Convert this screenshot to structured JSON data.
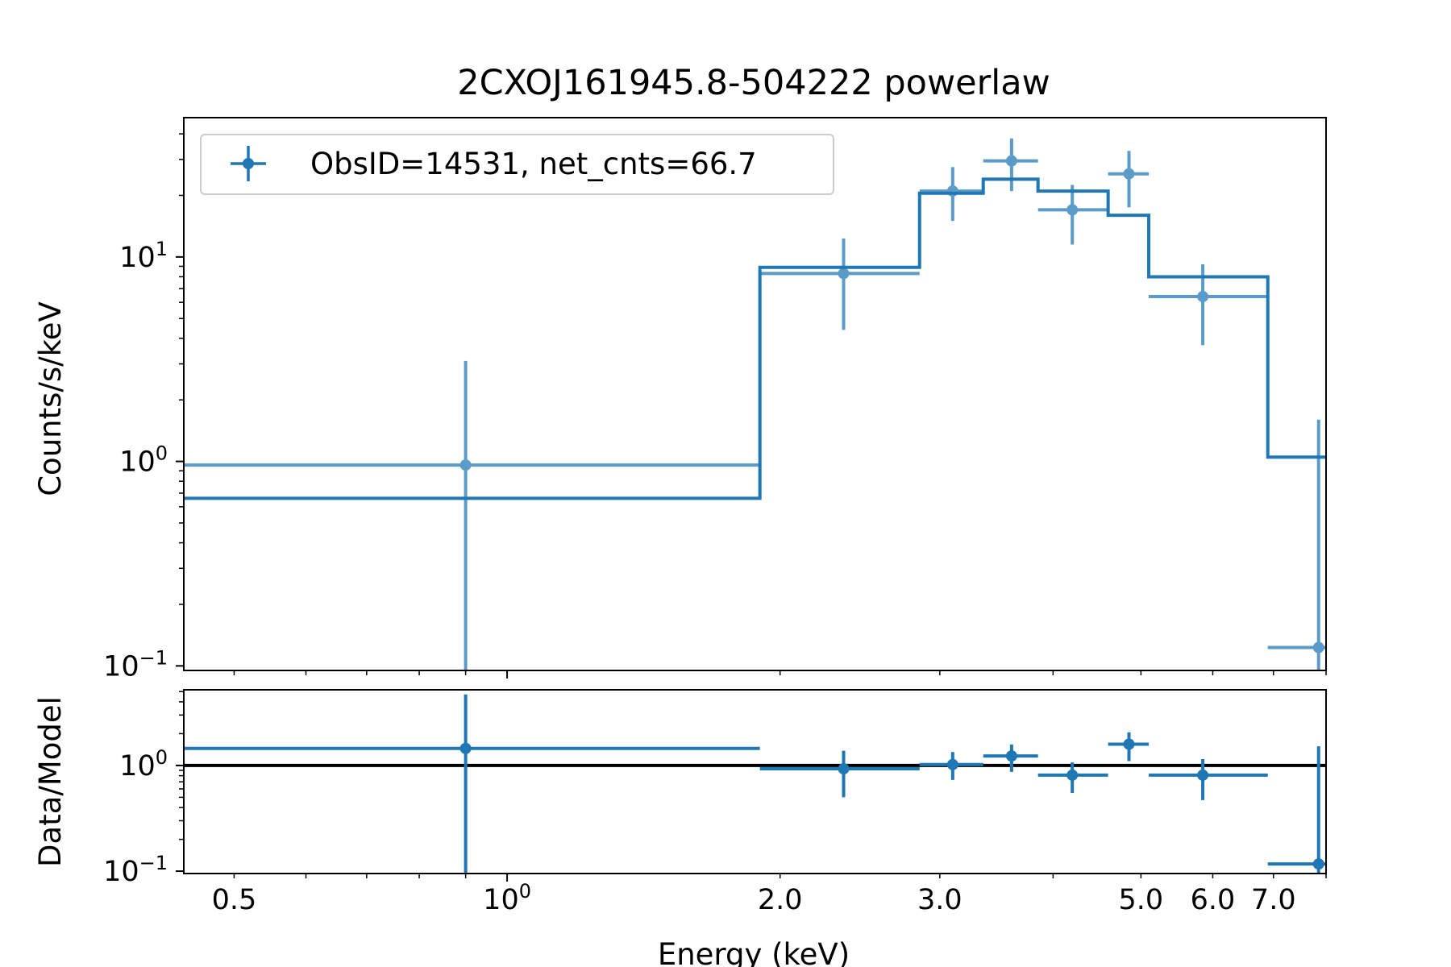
{
  "chart_data": {
    "type": "scatter",
    "title": "2CXOJ161945.8-504222 powerlaw",
    "xlabel": "Energy (keV)",
    "x_scale": "log",
    "xlim": [
      0.44,
      8.0
    ],
    "x_ticks": [
      {
        "value": 0.5,
        "label": "0.5"
      },
      {
        "value": 1.0,
        "label": "10",
        "sup": "0"
      },
      {
        "value": 2.0,
        "label": "2.0"
      },
      {
        "value": 3.0,
        "label": "3.0"
      },
      {
        "value": 5.0,
        "label": "5.0"
      },
      {
        "value": 6.0,
        "label": "6.0"
      },
      {
        "value": 7.0,
        "label": "7.0"
      }
    ],
    "colors": {
      "data": "#1f77b4",
      "data_light": "#5b9bc8",
      "ratio_line": "#000000",
      "legend_border": "#cccccc"
    },
    "legend": {
      "label": "ObsID=14531, net_cnts=66.7",
      "position": "upper-left"
    },
    "top_panel": {
      "ylabel": "Counts/s/keV",
      "y_scale": "log",
      "ylim": [
        0.095,
        48
      ],
      "y_ticks": [
        {
          "value": 0.1,
          "base": "10",
          "sup": "−1"
        },
        {
          "value": 1,
          "base": "10",
          "sup": "0"
        },
        {
          "value": 10,
          "base": "10",
          "sup": "1"
        }
      ],
      "data_points": [
        {
          "x": 0.9,
          "x_lo": 0.44,
          "x_hi": 1.9,
          "y": 0.96,
          "y_lo": 0.095,
          "y_hi": 3.1
        },
        {
          "x": 2.35,
          "x_lo": 1.9,
          "x_hi": 2.85,
          "y": 8.3,
          "y_lo": 4.4,
          "y_hi": 12.3
        },
        {
          "x": 3.1,
          "x_lo": 2.85,
          "x_hi": 3.35,
          "y": 21,
          "y_lo": 15,
          "y_hi": 27.5
        },
        {
          "x": 3.6,
          "x_lo": 3.35,
          "x_hi": 3.85,
          "y": 29.5,
          "y_lo": 21,
          "y_hi": 38
        },
        {
          "x": 4.2,
          "x_lo": 3.85,
          "x_hi": 4.6,
          "y": 17,
          "y_lo": 11.5,
          "y_hi": 22.5
        },
        {
          "x": 4.85,
          "x_lo": 4.6,
          "x_hi": 5.1,
          "y": 25.5,
          "y_lo": 17.5,
          "y_hi": 33
        },
        {
          "x": 5.85,
          "x_lo": 5.1,
          "x_hi": 6.9,
          "y": 6.4,
          "y_lo": 3.7,
          "y_hi": 9.2
        },
        {
          "x": 7.85,
          "x_lo": 6.9,
          "x_hi": 8.0,
          "y": 0.123,
          "y_lo": 0.095,
          "y_hi": 1.6
        }
      ],
      "model_steps": [
        {
          "x_lo": 0.44,
          "x_hi": 1.9,
          "y": 0.66
        },
        {
          "x_lo": 1.9,
          "x_hi": 2.85,
          "y": 8.9
        },
        {
          "x_lo": 2.85,
          "x_hi": 3.35,
          "y": 20.5
        },
        {
          "x_lo": 3.35,
          "x_hi": 3.85,
          "y": 24
        },
        {
          "x_lo": 3.85,
          "x_hi": 4.6,
          "y": 21
        },
        {
          "x_lo": 4.6,
          "x_hi": 5.1,
          "y": 16
        },
        {
          "x_lo": 5.1,
          "x_hi": 6.9,
          "y": 8
        },
        {
          "x_lo": 6.9,
          "x_hi": 8.0,
          "y": 1.05
        }
      ]
    },
    "bottom_panel": {
      "ylabel": "Data/Model",
      "y_scale": "log",
      "ylim": [
        0.095,
        5.2
      ],
      "y_ticks": [
        {
          "value": 0.1,
          "base": "10",
          "sup": "−1"
        },
        {
          "value": 1,
          "base": "10",
          "sup": "0"
        }
      ],
      "reference_line": 1,
      "data_points": [
        {
          "x": 0.9,
          "x_lo": 0.44,
          "x_hi": 1.9,
          "y": 1.45,
          "y_lo": 0.095,
          "y_hi": 4.7
        },
        {
          "x": 2.35,
          "x_lo": 1.9,
          "x_hi": 2.85,
          "y": 0.93,
          "y_lo": 0.5,
          "y_hi": 1.38
        },
        {
          "x": 3.1,
          "x_lo": 2.85,
          "x_hi": 3.35,
          "y": 1.02,
          "y_lo": 0.73,
          "y_hi": 1.34
        },
        {
          "x": 3.6,
          "x_lo": 3.35,
          "x_hi": 3.85,
          "y": 1.23,
          "y_lo": 0.87,
          "y_hi": 1.58
        },
        {
          "x": 4.2,
          "x_lo": 3.85,
          "x_hi": 4.6,
          "y": 0.81,
          "y_lo": 0.55,
          "y_hi": 1.07
        },
        {
          "x": 4.85,
          "x_lo": 4.6,
          "x_hi": 5.1,
          "y": 1.59,
          "y_lo": 1.1,
          "y_hi": 2.06
        },
        {
          "x": 5.85,
          "x_lo": 5.1,
          "x_hi": 6.9,
          "y": 0.81,
          "y_lo": 0.47,
          "y_hi": 1.15
        },
        {
          "x": 7.85,
          "x_lo": 6.9,
          "x_hi": 8.0,
          "y": 0.117,
          "y_lo": 0.095,
          "y_hi": 1.52
        }
      ]
    }
  }
}
